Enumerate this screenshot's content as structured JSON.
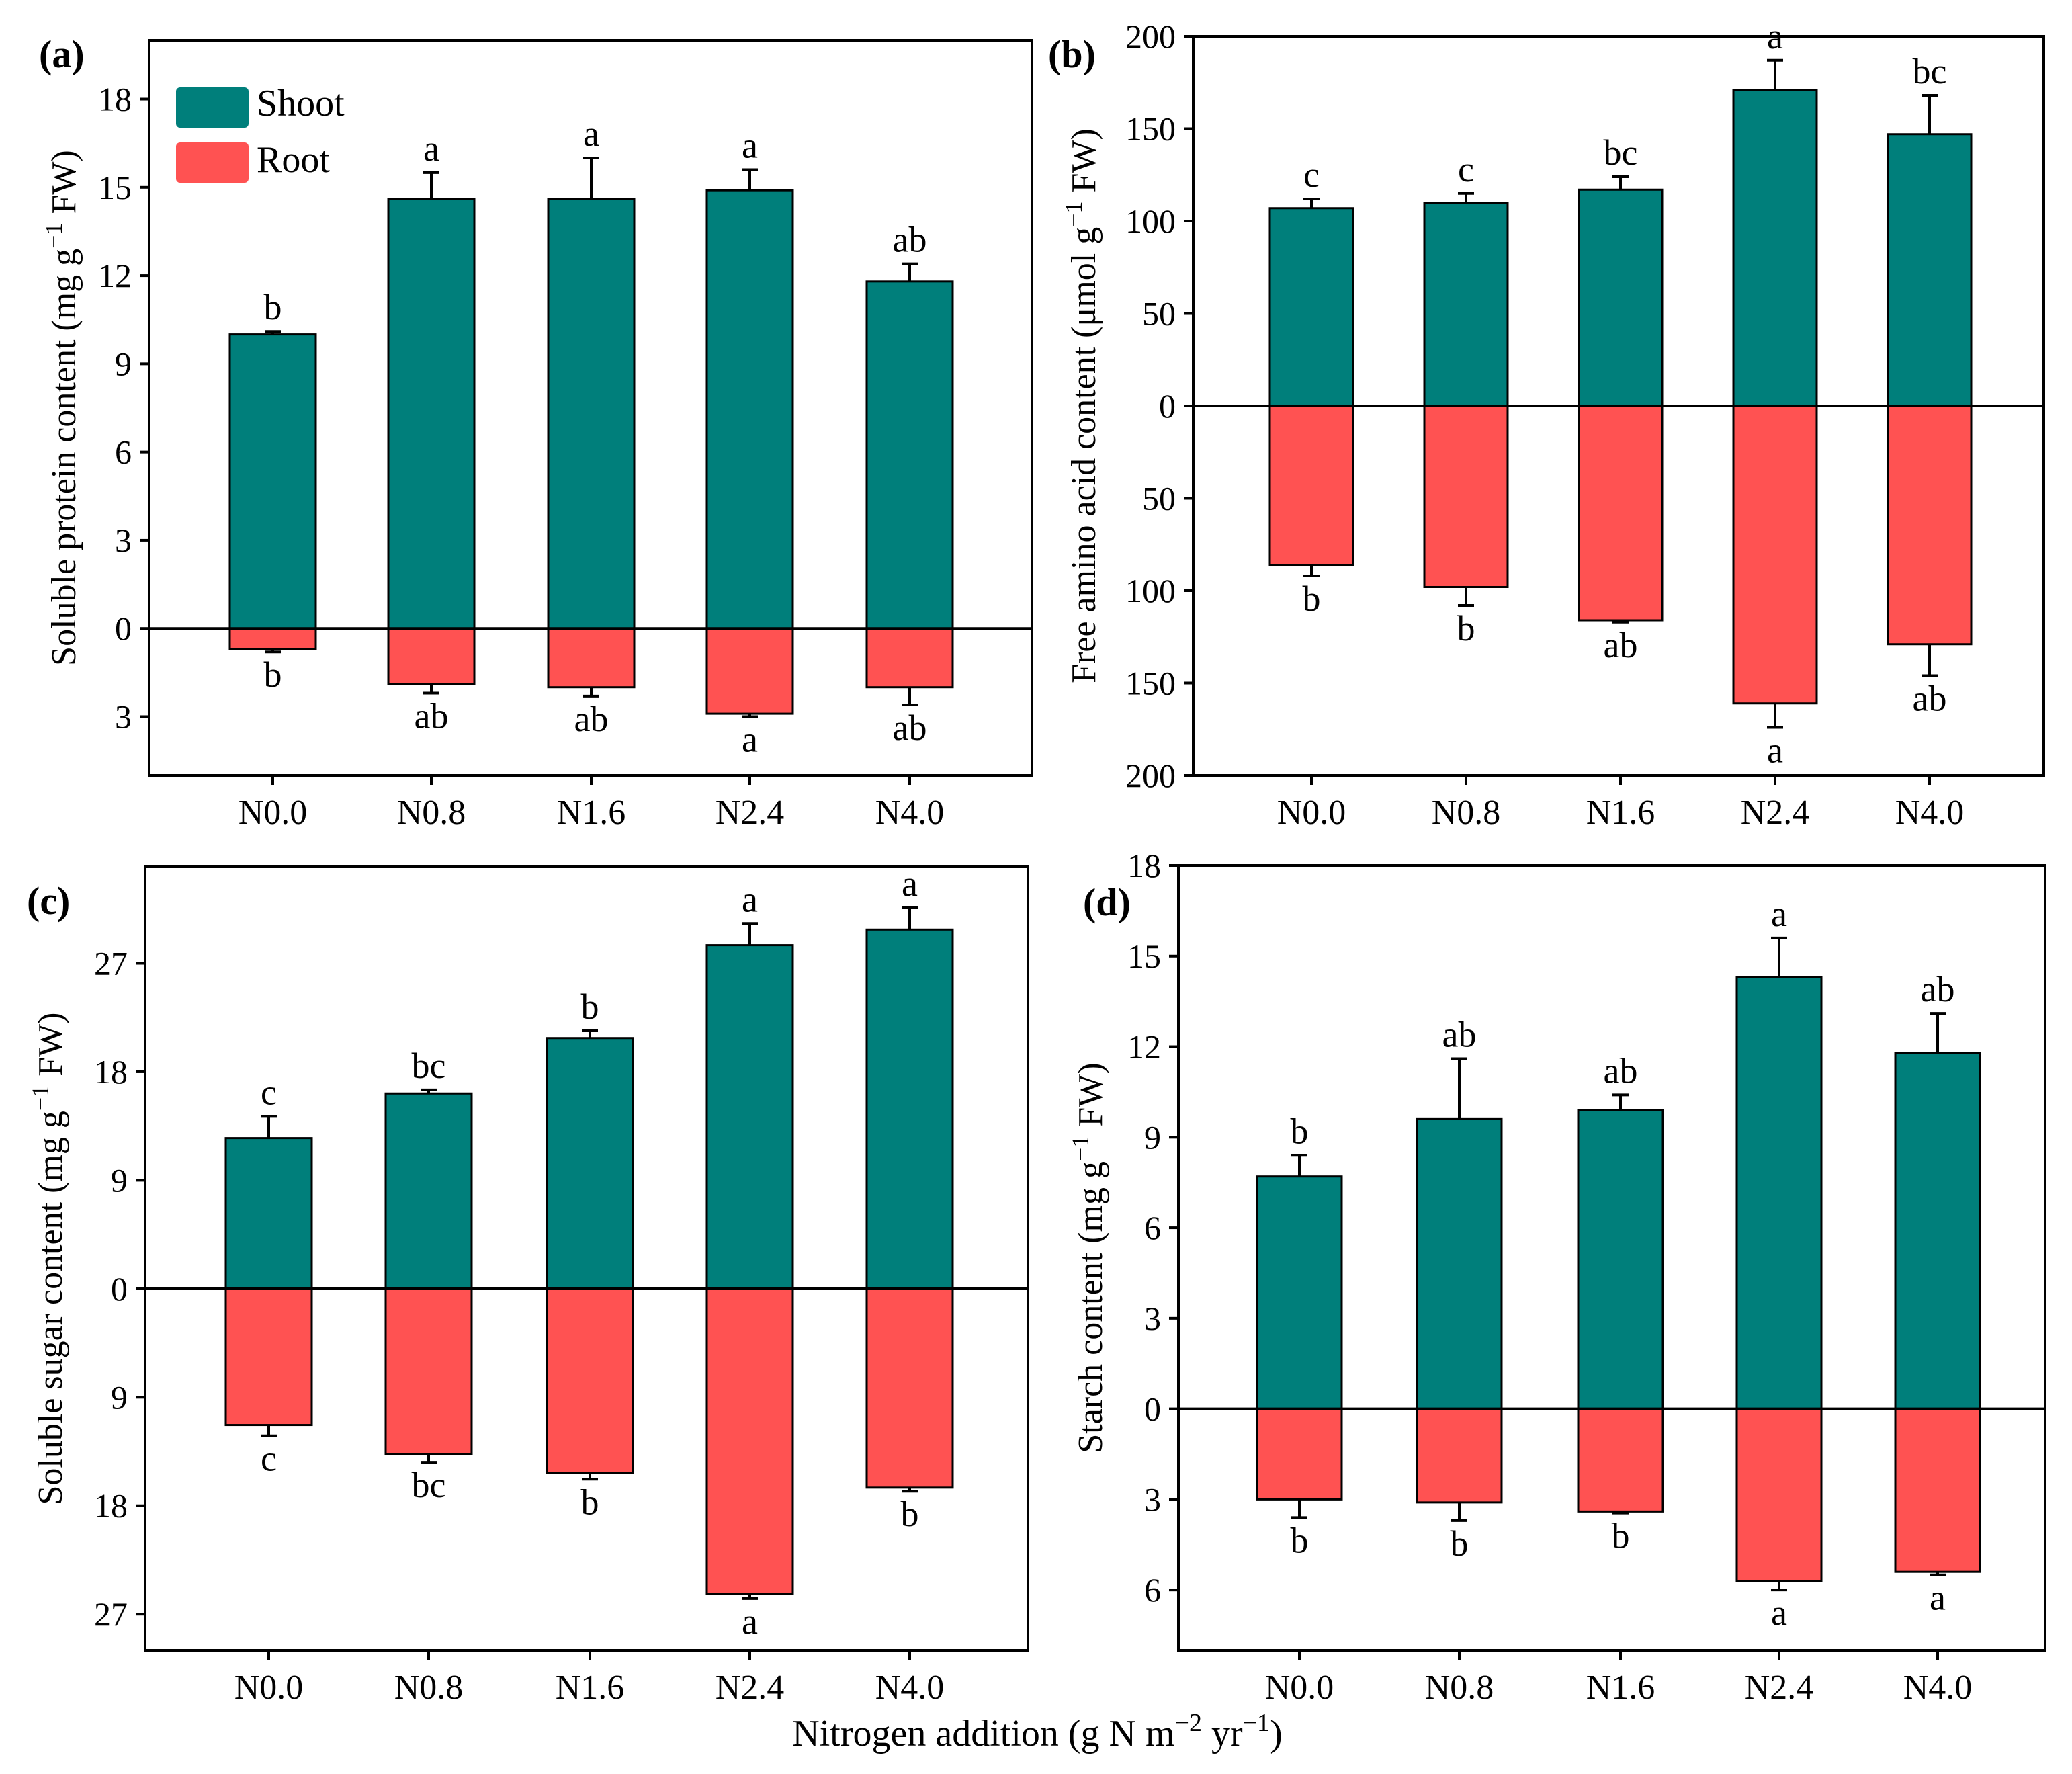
{
  "colors": {
    "shoot": "#007F7B",
    "root": "#FF5252",
    "axis": "#000000"
  },
  "figure": {
    "xlabel_main": "Nitrogen addition (g N m",
    "xlabel_exp1": "−2",
    "xlabel_mid": " yr",
    "xlabel_exp2": "−1",
    "xlabel_close": ")"
  },
  "legend": {
    "shoot": "Shoot",
    "root": "Root"
  },
  "chart_data": [
    {
      "id": "a",
      "type": "bar",
      "panel_label": "(a)",
      "ylabel": {
        "main": "Soluble protein content (mg g",
        "sup": "−1",
        "tail": " FW)"
      },
      "categories": [
        "N0.0",
        "N0.8",
        "N1.6",
        "N2.4",
        "N4.0"
      ],
      "ylim": [
        -5.0,
        20.0
      ],
      "yticks": [
        -3,
        0,
        3,
        6,
        9,
        12,
        15,
        18
      ],
      "yticklabels": [
        "3",
        "0",
        "3",
        "6",
        "9",
        "12",
        "15",
        "18"
      ],
      "series": [
        {
          "name": "Shoot",
          "values": [
            10.0,
            14.6,
            14.6,
            14.9,
            11.8
          ],
          "errors": [
            0.1,
            0.9,
            1.4,
            0.7,
            0.6
          ],
          "letters": [
            "b",
            "a",
            "a",
            "a",
            "ab"
          ]
        },
        {
          "name": "Root",
          "values": [
            -0.7,
            -1.9,
            -2.0,
            -2.9,
            -2.0
          ],
          "errors": [
            0.1,
            0.3,
            0.3,
            0.1,
            0.6
          ],
          "letters": [
            "b",
            "ab",
            "ab",
            "a",
            "ab"
          ]
        }
      ],
      "legend_position": "top-left"
    },
    {
      "id": "b",
      "type": "bar",
      "panel_label": "(b)",
      "ylabel": {
        "main": "Free amino acid content (μmol g",
        "sup": "−1",
        "tail": " FW)"
      },
      "categories": [
        "N0.0",
        "N0.8",
        "N1.6",
        "N2.4",
        "N4.0"
      ],
      "ylim": [
        -200,
        200
      ],
      "yticks": [
        -200,
        -150,
        -100,
        -50,
        0,
        50,
        100,
        150,
        200
      ],
      "yticklabels": [
        "200",
        "150",
        "100",
        "50",
        "0",
        "50",
        "100",
        "150",
        "200"
      ],
      "series": [
        {
          "name": "Shoot",
          "values": [
            107,
            110,
            117,
            171,
            147
          ],
          "errors": [
            5,
            5,
            7,
            16,
            21
          ],
          "letters": [
            "c",
            "c",
            "bc",
            "a",
            "bc"
          ]
        },
        {
          "name": "Root",
          "values": [
            -86,
            -98,
            -116,
            -161,
            -129
          ],
          "errors": [
            6,
            10,
            1,
            13,
            17
          ],
          "letters": [
            "b",
            "b",
            "ab",
            "a",
            "ab"
          ]
        }
      ]
    },
    {
      "id": "c",
      "type": "bar",
      "panel_label": "(c)",
      "ylabel": {
        "main": "Soluble sugar content (mg g",
        "sup": "−1",
        "tail": " FW)"
      },
      "categories": [
        "N0.0",
        "N0.8",
        "N1.6",
        "N2.4",
        "N4.0"
      ],
      "ylim": [
        -30.0,
        35.0
      ],
      "yticks": [
        -27,
        -18,
        -9,
        0,
        9,
        18,
        27
      ],
      "yticklabels": [
        "27",
        "18",
        "9",
        "0",
        "9",
        "18",
        "27"
      ],
      "series": [
        {
          "name": "Shoot",
          "values": [
            12.5,
            16.2,
            20.8,
            28.5,
            29.8
          ],
          "errors": [
            1.8,
            0.3,
            0.6,
            1.8,
            1.8
          ],
          "letters": [
            "c",
            "bc",
            "b",
            "a",
            "a"
          ]
        },
        {
          "name": "Root",
          "values": [
            -11.3,
            -13.7,
            -15.3,
            -25.3,
            -16.5
          ],
          "errors": [
            0.9,
            0.7,
            0.5,
            0.4,
            0.3
          ],
          "letters": [
            "c",
            "bc",
            "b",
            "a",
            "b"
          ]
        }
      ]
    },
    {
      "id": "d",
      "type": "bar",
      "panel_label": "(d)",
      "ylabel": {
        "main": "Starch content (mg g",
        "sup": "−1",
        "tail": " FW)"
      },
      "categories": [
        "N0.0",
        "N0.8",
        "N1.6",
        "N2.4",
        "N4.0"
      ],
      "ylim": [
        -8.0,
        18.0
      ],
      "yticks": [
        -6,
        -3,
        0,
        3,
        6,
        9,
        12,
        15,
        18
      ],
      "yticklabels": [
        "6",
        "3",
        "0",
        "3",
        "6",
        "9",
        "12",
        "15",
        "18"
      ],
      "series": [
        {
          "name": "Shoot",
          "values": [
            7.7,
            9.6,
            9.9,
            14.3,
            11.8
          ],
          "errors": [
            0.7,
            2.0,
            0.5,
            1.3,
            1.3
          ],
          "letters": [
            "b",
            "ab",
            "ab",
            "a",
            "ab"
          ]
        },
        {
          "name": "Root",
          "values": [
            -3.0,
            -3.1,
            -3.4,
            -5.7,
            -5.4
          ],
          "errors": [
            0.6,
            0.6,
            0.05,
            0.3,
            0.1
          ],
          "letters": [
            "b",
            "b",
            "b",
            "a",
            "a"
          ]
        }
      ]
    }
  ]
}
